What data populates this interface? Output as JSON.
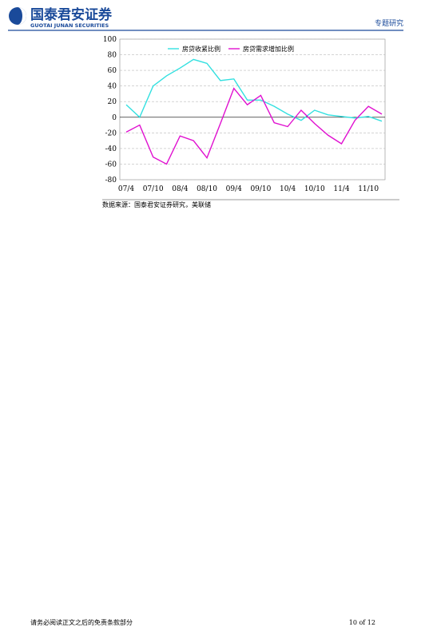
{
  "header": {
    "company": "国泰君安证券",
    "company_en": "GUOTAI JUNAN SECURITIES",
    "report_type": "专题研究"
  },
  "chart_data": {
    "type": "line",
    "categories": [
      "07/4",
      null,
      "07/10",
      null,
      "08/4",
      null,
      "08/10",
      null,
      "09/4",
      null,
      "09/10",
      null,
      "10/4",
      null,
      "10/10",
      null,
      "11/4",
      null,
      "11/10",
      null
    ],
    "series": [
      {
        "name": "房贷收紧比例",
        "color": "#33e0e0",
        "values": [
          16,
          0,
          40,
          53,
          63,
          74,
          69,
          47,
          49,
          22,
          22,
          14,
          4,
          -4,
          9,
          3,
          1,
          -1,
          1,
          -5
        ]
      },
      {
        "name": "房贷需求增加比例",
        "color": "#e010d0",
        "values": [
          -19,
          -10,
          -51,
          -60,
          -24,
          -30,
          -52,
          -8,
          37,
          16,
          28,
          -7,
          -12,
          9,
          -8,
          -23,
          -34,
          -4,
          14,
          4
        ]
      }
    ],
    "ylim": [
      -80,
      100
    ],
    "yticks": [
      -80,
      -60,
      -40,
      -20,
      0,
      20,
      40,
      60,
      80,
      100
    ],
    "grid": true,
    "legend": "top"
  },
  "source": "数据来源：国泰君安证券研究，美联储",
  "footer": {
    "disclaimer": "请务必阅读正文之后的免责条款部分",
    "page": "10 of 12"
  }
}
